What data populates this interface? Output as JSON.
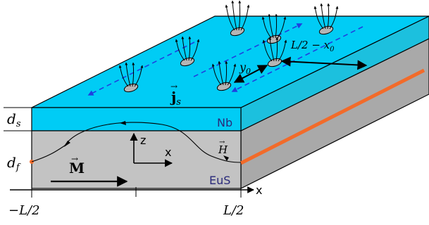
{
  "colors": {
    "nb_layer": "#00ccf5",
    "eus_layer": "#c3c3c3",
    "eus_side": "#a9a9a9",
    "nb_side": "#1cc0de",
    "wire": "#f26b2a",
    "current_arrow": "#1f3fe0",
    "vortex": "#b5b5b5",
    "material_label": "#2a2a7a",
    "outline": "#000000"
  },
  "labels": {
    "nb": "Nb",
    "eus": "EuS",
    "d_s": "d",
    "d_s_sub": "s",
    "d_f": "d",
    "d_f_sub": "f",
    "magnetization": "M",
    "field": "H",
    "axis_z": "z",
    "axis_x_inner": "x",
    "axis_x_outer": "x",
    "current_j": "j",
    "current_sub": "s",
    "y0": "y",
    "y0_sub": "0",
    "distance": "L/2 − x",
    "distance_sub": "0",
    "left_tick": "−L/2",
    "right_tick": "L/2"
  }
}
